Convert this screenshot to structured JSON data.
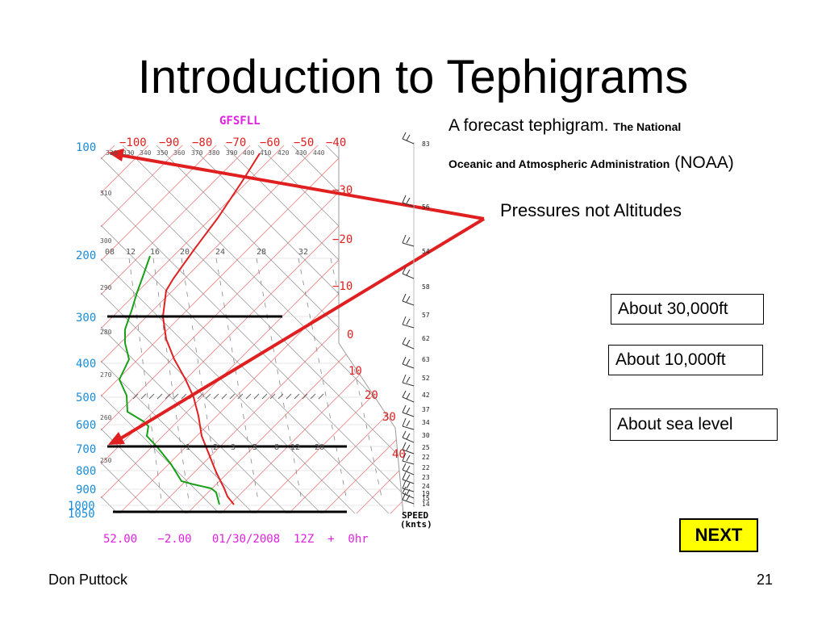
{
  "slide": {
    "title": "Introduction to Tephigrams",
    "caption_part1": "A forecast tephigram.",
    "caption_part2": "The  National",
    "caption_part3": "Oceanic and Atmospheric Administration",
    "caption_part4": "(NOAA)",
    "pressures_note": "Pressures not Altitudes",
    "box_30k": "About 30,000ft",
    "box_10k": "About 10,000ft",
    "box_sea": "About sea level",
    "next_label": "NEXT",
    "footer_author": "Don Puttock",
    "page_number": "21"
  },
  "tephigram": {
    "station": "GFSFLL",
    "temp_top_labels": [
      "−100",
      "−90",
      "−80",
      "−70",
      "−60",
      "−50",
      "−40"
    ],
    "theta_top_labels": [
      "320",
      "330",
      "340",
      "350",
      "360",
      "370",
      "380",
      "390",
      "400",
      "410",
      "420",
      "430",
      "440"
    ],
    "theta_side_labels": [
      "310",
      "300",
      "290",
      "280",
      "270",
      "260",
      "250"
    ],
    "mixing_ratio_top_labels": [
      "08",
      "12",
      "16",
      "20",
      "24",
      "28",
      "32"
    ],
    "mixing_ratio_low_labels": [
      "1",
      "2",
      "3",
      "5",
      "8",
      "12",
      "20"
    ],
    "pressure_labels": [
      "100",
      "200",
      "300",
      "400",
      "500",
      "600",
      "700",
      "800",
      "900",
      "1000",
      "1050"
    ],
    "temp_right_labels": [
      "−30",
      "−20",
      "−10",
      "0",
      "10",
      "20",
      "30",
      "40"
    ],
    "wind_speeds": [
      "83",
      "56",
      "54",
      "58",
      "57",
      "62",
      "63",
      "52",
      "42",
      "37",
      "34",
      "30",
      "25",
      "22",
      "22",
      "23",
      "24",
      "19",
      "15",
      "14"
    ],
    "speed_label": "SPEED",
    "speed_unit": "(knts)",
    "bottom_info": "52.00   −2.00   01/30/2008  12Z  +  0hr"
  },
  "colors": {
    "red_line": "#e02020",
    "grid_red": "#f08080",
    "blue_label": "#1a8cd8",
    "magenta": "#e020e0",
    "dewpoint_green": "#18a018",
    "temp_label_red": "#e02020",
    "next_bg": "#ffff00"
  }
}
